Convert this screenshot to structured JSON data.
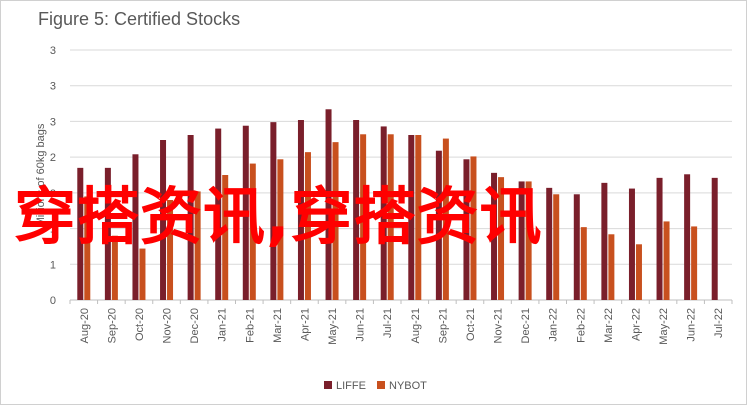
{
  "colors": {
    "liffe": "#7a1f2b",
    "nybot": "#c8501e",
    "grid": "#d9d9d9",
    "axis": "#bfbfbf",
    "text": "#595959"
  },
  "watermark_text": "穿搭资讯,穿搭资讯",
  "chart_data": {
    "type": "bar",
    "title": "Figure 5: Certified Stocks",
    "xlabel": "",
    "ylabel": "Millions of 60kg bags",
    "yticks": [
      "0",
      "1",
      "1",
      "2",
      "2",
      "3",
      "3",
      "3"
    ],
    "ylim": [
      0,
      3.5
    ],
    "grid": true,
    "legend_position": "bottom",
    "categories": [
      "Aug-20",
      "Sep-20",
      "Oct-20",
      "Nov-20",
      "Dec-20",
      "Jan-21",
      "Feb-21",
      "Mar-21",
      "Apr-21",
      "May-21",
      "Jun-21",
      "Jul-21",
      "Aug-21",
      "Sep-21",
      "Oct-21",
      "Nov-21",
      "Dec-21",
      "Jan-22",
      "Feb-22",
      "Mar-22",
      "Apr-22",
      "May-22",
      "Jun-22",
      "Jul-22"
    ],
    "series": [
      {
        "name": "LIFFE",
        "values": [
          1.85,
          1.85,
          2.04,
          2.24,
          2.31,
          2.4,
          2.44,
          2.49,
          2.52,
          2.67,
          2.52,
          2.43,
          2.31,
          2.09,
          1.97,
          1.78,
          1.66,
          1.57,
          1.48,
          1.64,
          1.56,
          1.71,
          1.76,
          1.71
        ]
      },
      {
        "name": "NYBOT",
        "values": [
          1.45,
          0.9,
          0.72,
          1.4,
          1.52,
          1.75,
          1.91,
          1.97,
          2.07,
          2.21,
          2.32,
          2.32,
          2.31,
          2.26,
          2.01,
          1.72,
          1.66,
          1.48,
          1.02,
          0.92,
          0.78,
          1.1,
          1.03,
          null
        ]
      }
    ]
  }
}
